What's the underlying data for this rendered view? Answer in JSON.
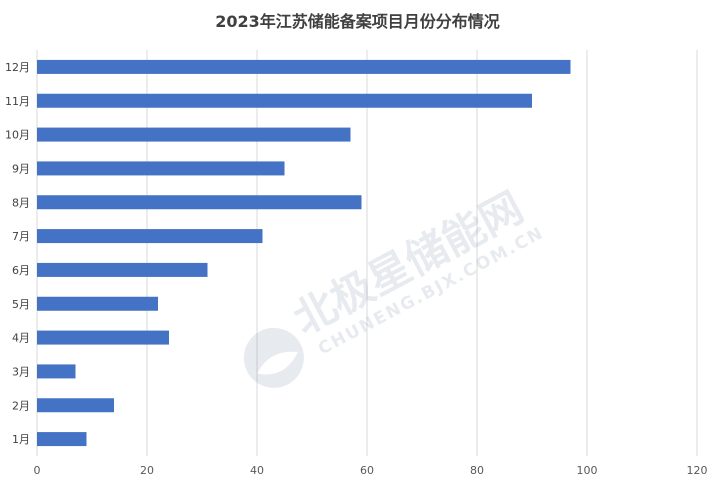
{
  "chart_data": {
    "type": "bar",
    "orientation": "horizontal",
    "title": "2023年江苏储能备案项目月份分布情况",
    "xlabel": "",
    "ylabel": "",
    "categories": [
      "12月",
      "11月",
      "10月",
      "9月",
      "8月",
      "7月",
      "6月",
      "5月",
      "4月",
      "3月",
      "2月",
      "1月"
    ],
    "values": [
      97,
      90,
      57,
      45,
      59,
      41,
      31,
      22,
      24,
      7,
      14,
      9
    ],
    "xlim": [
      0,
      120
    ],
    "xticks": [
      0,
      20,
      40,
      60,
      80,
      100,
      120
    ],
    "grid": "vertical",
    "legend": "none",
    "bar_color": "#4472C4",
    "grid_color": "#D9D9D9"
  },
  "watermark": {
    "main": "北极星储能网",
    "sub": "CHUNENG.BJX.COM.CN"
  }
}
